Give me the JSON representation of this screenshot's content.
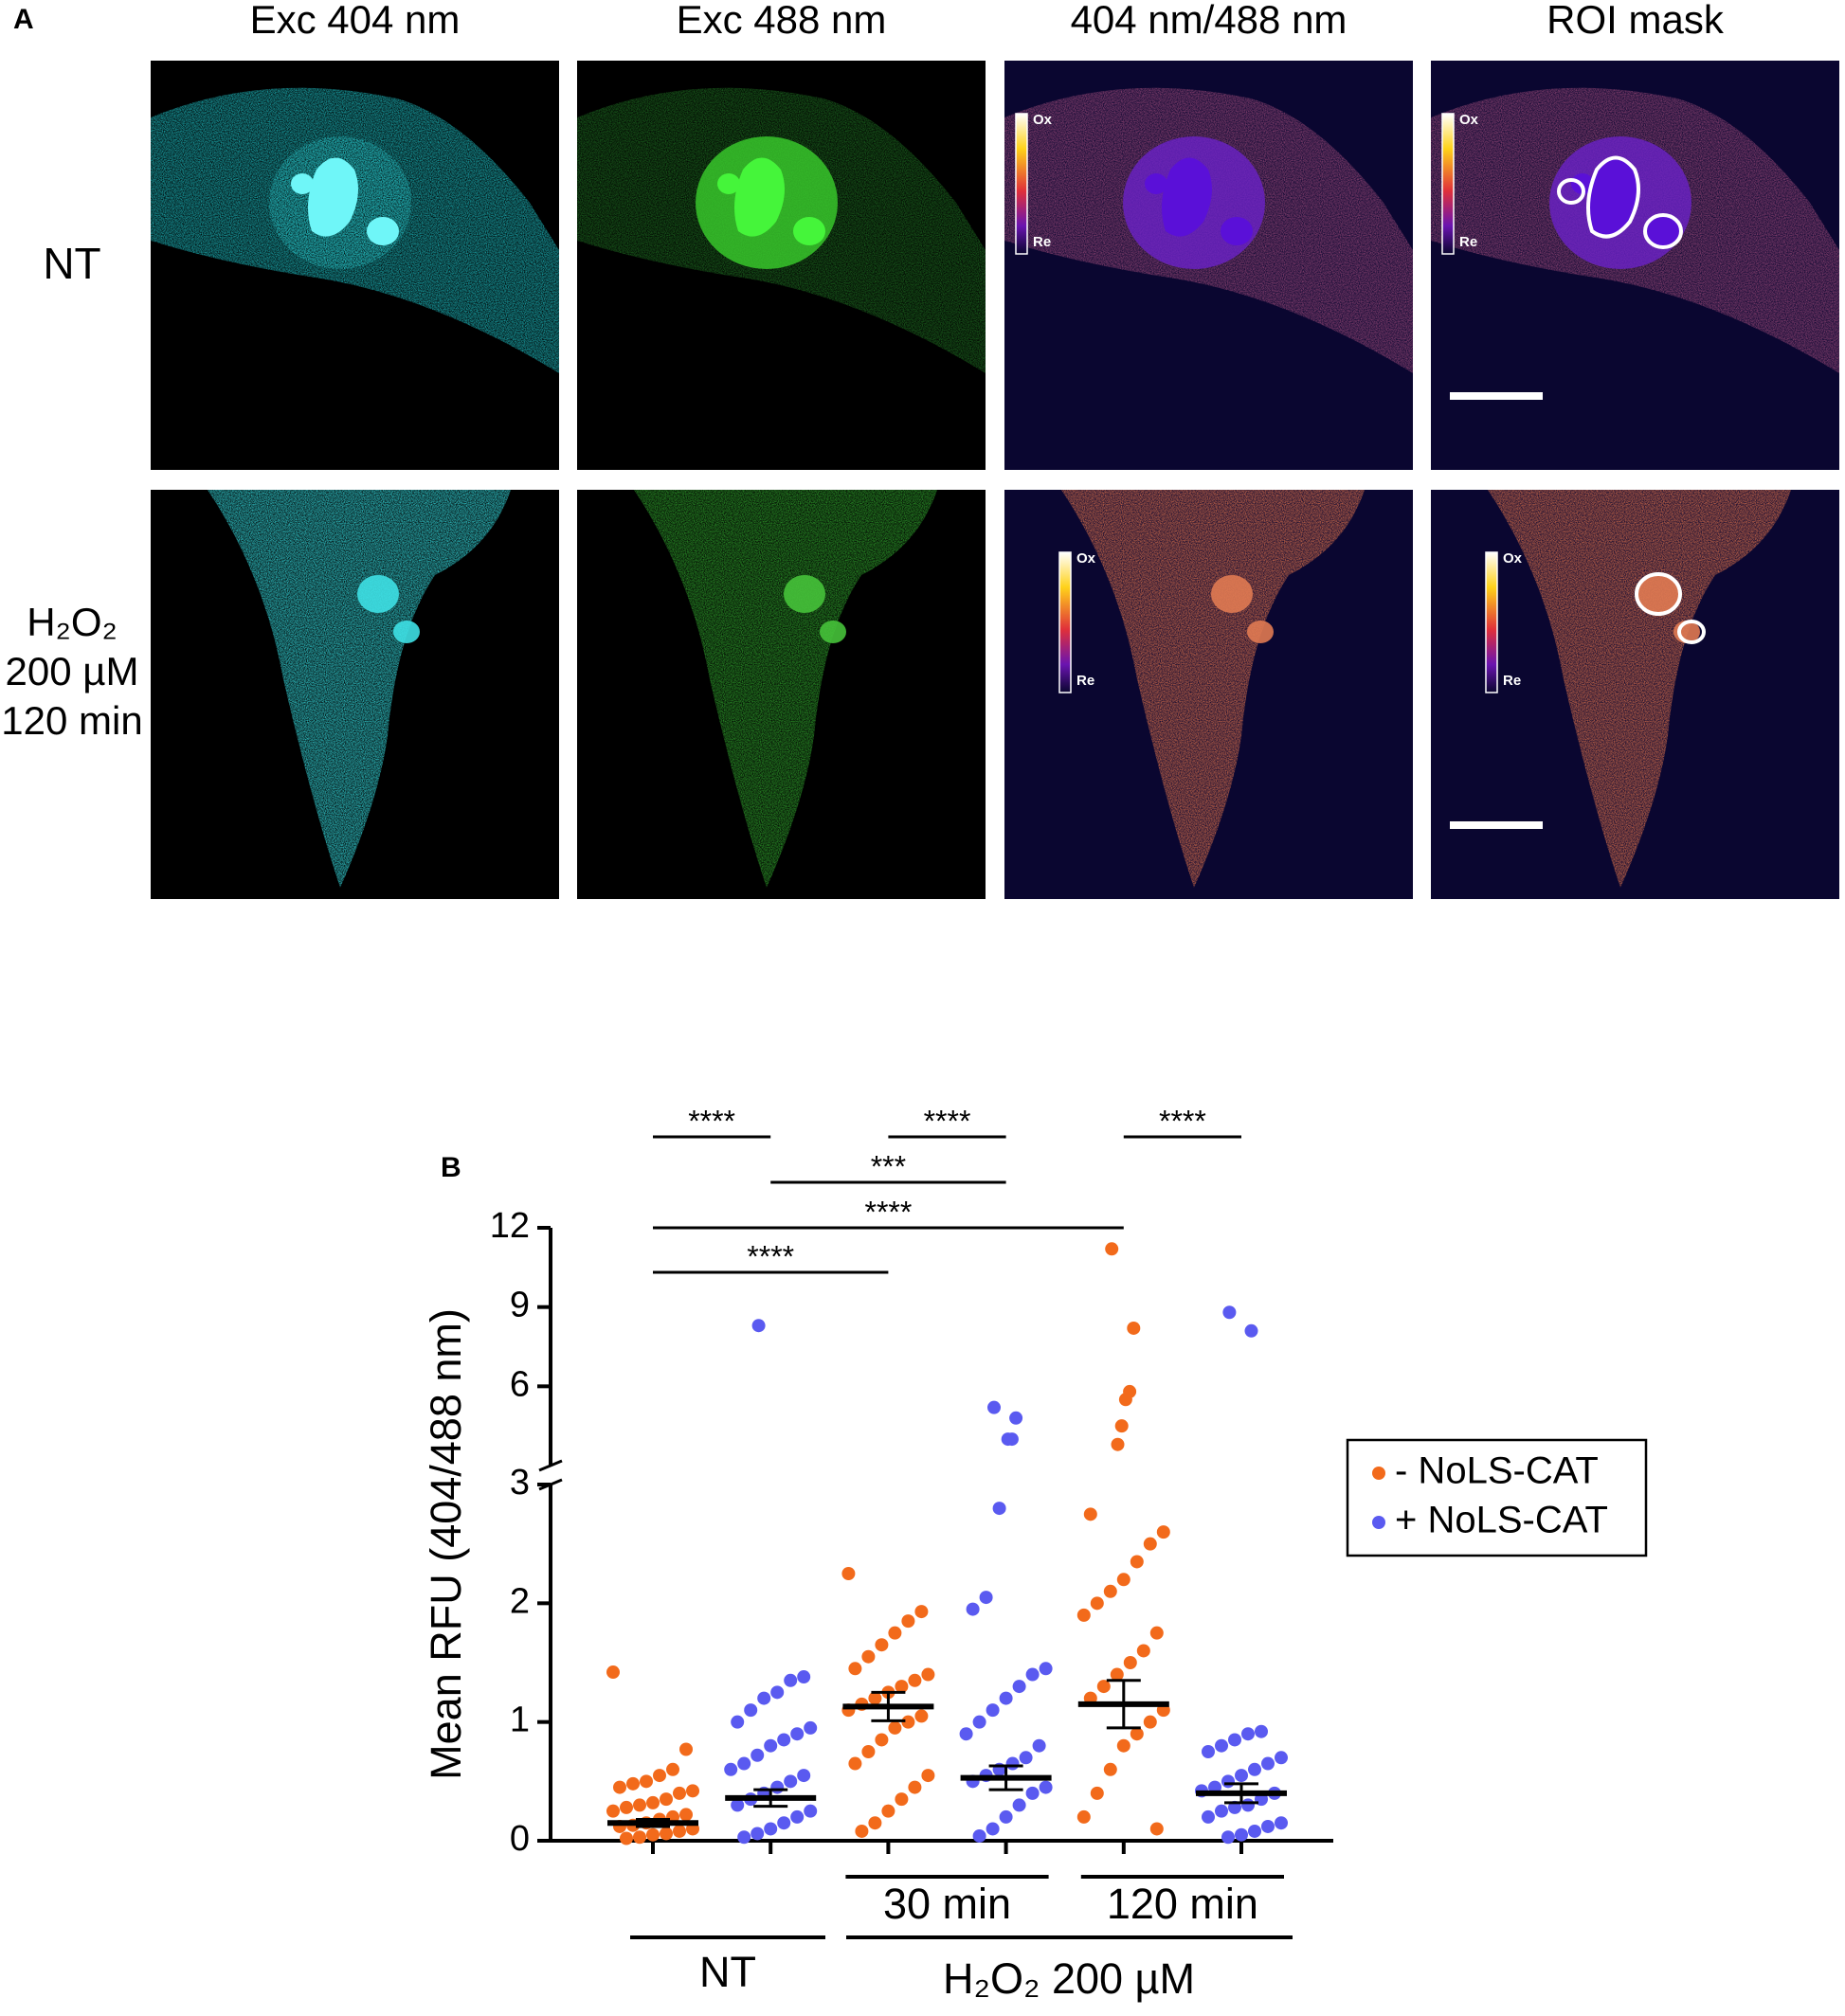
{
  "panel_a": {
    "label": "A",
    "columns": [
      "Exc 404 nm",
      "Exc 488 nm",
      "404 nm/488 nm",
      "ROI mask"
    ],
    "rows": [
      [
        "NT"
      ],
      [
        "H₂O₂",
        "200 µM",
        "120 min"
      ]
    ],
    "colorbar": {
      "top": "Ox",
      "bottom": "Re"
    }
  },
  "chart_data": {
    "type": "scatter",
    "label": "B",
    "y_label": "Mean RFU (404/488 nm)",
    "categories": [
      "NT",
      "30 min",
      "120 min"
    ],
    "group_label": "H₂O₂ 200 µM",
    "y_segments": [
      {
        "ylim": [
          0,
          3
        ],
        "yticks": [
          0,
          1,
          2,
          3
        ]
      },
      {
        "ylim": [
          3,
          12
        ],
        "yticks": [
          6,
          9,
          12
        ]
      }
    ],
    "series": [
      {
        "name": "- NoLS-CAT",
        "color": "#f26a1b",
        "groups": [
          {
            "values": [
              1.42,
              0.77,
              0.6,
              0.55,
              0.5,
              0.48,
              0.45,
              0.42,
              0.4,
              0.35,
              0.32,
              0.3,
              0.28,
              0.25,
              0.22,
              0.2,
              0.18,
              0.15,
              0.13,
              0.12,
              0.1,
              0.08,
              0.06,
              0.05,
              0.03,
              0.02
            ]
          },
          {
            "values": [
              2.25,
              1.93,
              1.85,
              1.75,
              1.65,
              1.55,
              1.45,
              1.4,
              1.35,
              1.3,
              1.25,
              1.2,
              1.15,
              1.1,
              1.05,
              1.0,
              0.95,
              0.85,
              0.75,
              0.65,
              0.55,
              0.45,
              0.35,
              0.25,
              0.15,
              0.08
            ]
          },
          {
            "values": [
              11.2,
              8.2,
              5.8,
              5.5,
              4.5,
              3.8,
              2.75,
              2.6,
              2.5,
              2.35,
              2.2,
              2.1,
              2.0,
              1.9,
              1.75,
              1.6,
              1.5,
              1.4,
              1.3,
              1.2,
              1.1,
              1.0,
              0.9,
              0.8,
              0.6,
              0.4,
              0.2,
              0.1
            ]
          }
        ],
        "means": [
          0.15,
          1.13,
          1.15
        ],
        "errors": [
          0.03,
          0.12,
          0.2
        ]
      },
      {
        "name": "+ NoLS-CAT",
        "color": "#5a5af0",
        "groups": [
          {
            "values": [
              8.3,
              1.38,
              1.35,
              1.25,
              1.2,
              1.1,
              1.0,
              0.95,
              0.9,
              0.85,
              0.8,
              0.72,
              0.65,
              0.6,
              0.55,
              0.5,
              0.45,
              0.4,
              0.35,
              0.3,
              0.25,
              0.2,
              0.15,
              0.1,
              0.06,
              0.03
            ]
          },
          {
            "values": [
              5.2,
              4.8,
              4.0,
              4.0,
              2.8,
              2.05,
              1.95,
              1.45,
              1.4,
              1.3,
              1.2,
              1.1,
              1.0,
              0.9,
              0.8,
              0.7,
              0.65,
              0.6,
              0.55,
              0.5,
              0.45,
              0.4,
              0.3,
              0.2,
              0.1,
              0.04
            ]
          },
          {
            "values": [
              8.8,
              8.1,
              0.92,
              0.9,
              0.85,
              0.8,
              0.75,
              0.7,
              0.65,
              0.6,
              0.55,
              0.5,
              0.45,
              0.42,
              0.4,
              0.35,
              0.3,
              0.28,
              0.25,
              0.2,
              0.15,
              0.12,
              0.08,
              0.05,
              0.03
            ]
          }
        ],
        "means": [
          0.36,
          0.53,
          0.4
        ],
        "errors": [
          0.07,
          0.1,
          0.08
        ]
      }
    ],
    "comparisons": [
      {
        "columns": [
          0,
          1
        ],
        "label": "****"
      },
      {
        "columns": [
          2,
          3
        ],
        "label": "****"
      },
      {
        "columns": [
          4,
          5
        ],
        "label": "****"
      },
      {
        "columns": [
          1,
          3
        ],
        "label": "***"
      },
      {
        "columns": [
          0,
          4
        ],
        "label": "****"
      },
      {
        "columns": [
          0,
          2
        ],
        "label": "****"
      }
    ],
    "legend": "right"
  }
}
